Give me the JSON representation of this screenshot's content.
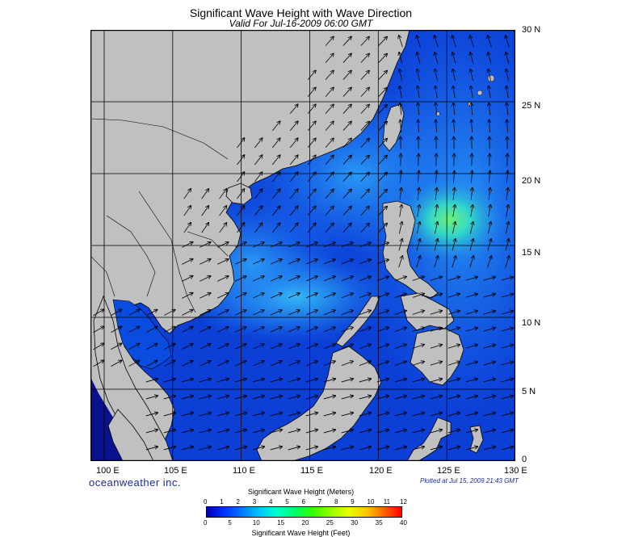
{
  "title": "Significant Wave Height with Wave Direction",
  "subtitle": "Valid For Jul-16-2009 06:00 GMT",
  "brand": "oceanweather inc.",
  "plotted": "Plotted at Jul 15, 2009 21:43 GMT",
  "lat_labels": [
    "30 N",
    "25 N",
    "20 N",
    "15 N",
    "10 N",
    "5 N",
    "0"
  ],
  "lon_labels": [
    "100 E",
    "105 E",
    "110 E",
    "115 E",
    "120 E",
    "125 E",
    "130 E"
  ],
  "legend": {
    "title_meters": "Significant Wave Height (Meters)",
    "title_feet": "Significant Wave Height (Feet)",
    "meter_ticks": [
      "0",
      "1",
      "2",
      "3",
      "4",
      "5",
      "6",
      "7",
      "8",
      "9",
      "10",
      "11",
      "12"
    ],
    "feet_ticks": [
      "0",
      "5",
      "10",
      "15",
      "20",
      "25",
      "30",
      "35",
      "40"
    ],
    "colors": [
      "#0000b4",
      "#0032ff",
      "#0078ff",
      "#00c8ff",
      "#00ffc8",
      "#00ff64",
      "#32ff00",
      "#96ff00",
      "#e6ff00",
      "#ffc800",
      "#ff6400",
      "#ff0000"
    ]
  },
  "colors": {
    "land": "#c0c0c0",
    "sea_low": "#0a3cd8",
    "sea_mid": "#1a6cf2",
    "sea_high": "#2cc8f0",
    "peak": "#5ef07a",
    "grid": "#000000"
  },
  "map_extent": {
    "lon_min": 99,
    "lon_max": 130,
    "lat_min": 0,
    "lat_max": 30
  }
}
